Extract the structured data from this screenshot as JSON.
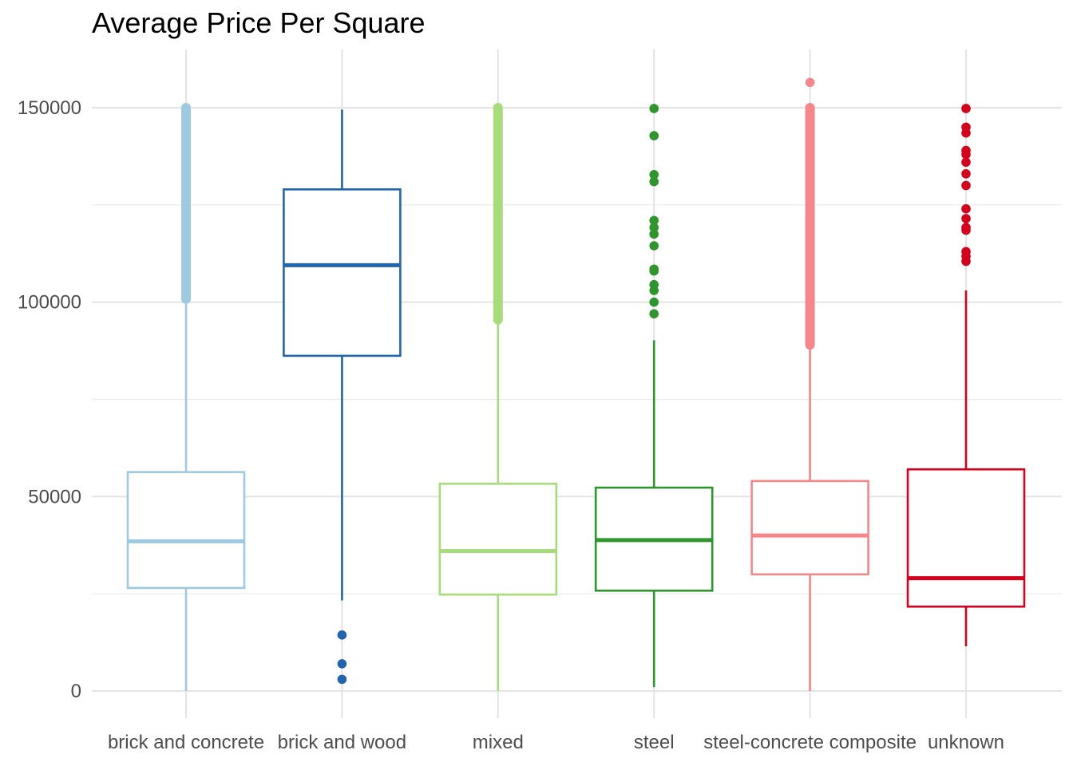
{
  "chart_data": {
    "type": "box",
    "title": "Average Price Per Square",
    "xlabel": "",
    "ylabel": "",
    "ylim": [
      -7000,
      165000
    ],
    "yticks": [
      0,
      50000,
      100000,
      150000
    ],
    "y_tick_labels": [
      "0",
      "50000",
      "100000",
      "150000"
    ],
    "grid": true,
    "legend": "none",
    "categories": [
      "brick and concrete",
      "brick and wood",
      "mixed",
      "steel",
      "steel-concrete composite",
      "unknown"
    ],
    "series": [
      {
        "category": "brick and concrete",
        "color": "#9ecae1",
        "whisker_low": 0,
        "q1": 26500,
        "median": 38500,
        "q3": 56300,
        "whisker_high": 100800,
        "outliers_band": [
          100800,
          150000
        ],
        "outliers": []
      },
      {
        "category": "brick and wood",
        "color": "#2166ac",
        "whisker_low": 23300,
        "q1": 86200,
        "median": 109500,
        "q3": 129000,
        "whisker_high": 149500,
        "outliers_band": null,
        "outliers": [
          14400,
          7000,
          3000
        ]
      },
      {
        "category": "mixed",
        "color": "#a6dc7a",
        "whisker_low": 0,
        "q1": 24800,
        "median": 36000,
        "q3": 53300,
        "whisker_high": 95500,
        "outliers_band": [
          95500,
          150000
        ],
        "outliers": []
      },
      {
        "category": "steel",
        "color": "#2e962c",
        "whisker_low": 1000,
        "q1": 25800,
        "median": 38800,
        "q3": 52300,
        "whisker_high": 90200,
        "outliers_band": null,
        "outliers": [
          97000,
          100000,
          103000,
          104500,
          108000,
          108500,
          114500,
          117500,
          119200,
          121000,
          131000,
          132800,
          142800,
          149800
        ]
      },
      {
        "category": "steel-concrete composite",
        "color": "#f7868a",
        "whisker_low": 0,
        "q1": 30000,
        "median": 40000,
        "q3": 54000,
        "whisker_high": 89000,
        "outliers_band": [
          89000,
          150000
        ],
        "outliers": [
          156500
        ]
      },
      {
        "category": "unknown",
        "color": "#d7001c",
        "whisker_low": 11500,
        "q1": 21700,
        "median": 29000,
        "q3": 57000,
        "whisker_high": 103000,
        "outliers_band": null,
        "outliers": [
          110500,
          111800,
          113000,
          118500,
          119200,
          121500,
          124000,
          130000,
          133000,
          136000,
          138000,
          139000,
          143500,
          145000,
          149800
        ]
      }
    ]
  }
}
